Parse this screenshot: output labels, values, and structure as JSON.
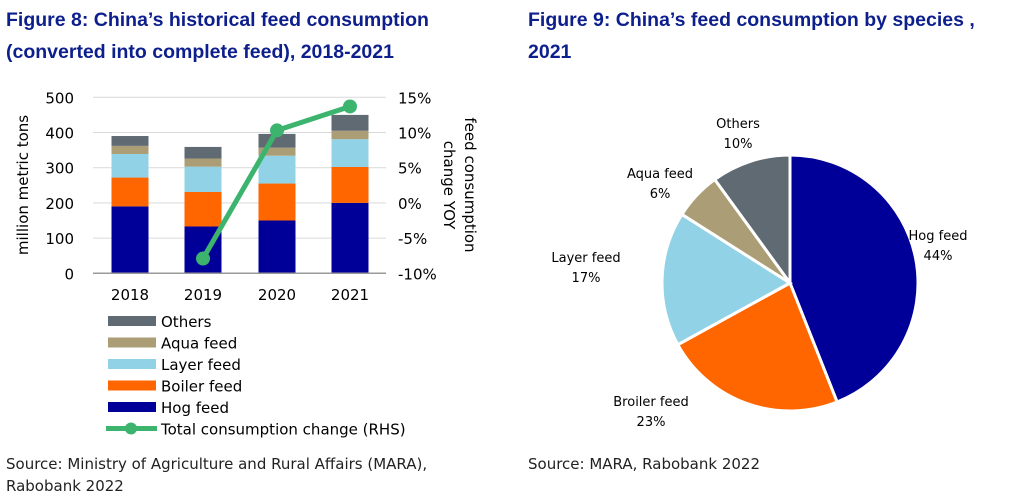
{
  "chart_data": [
    {
      "type": "bar",
      "stacked": true,
      "title": "Figure 8: China’s historical feed consumption (converted into complete feed), 2018-2021",
      "categories": [
        "2018",
        "2019",
        "2020",
        "2021"
      ],
      "ylabel": "million metric tons",
      "ylim": [
        0,
        500
      ],
      "yticks": [
        "0",
        "100",
        "200",
        "300",
        "400",
        "500"
      ],
      "y2label": "feed consumption change YOY",
      "y2lim": [
        -10,
        15
      ],
      "y2ticks": [
        "-10%",
        "-5%",
        "0%",
        "5%",
        "10%",
        "15%"
      ],
      "grid": true,
      "legend_position": "bottom",
      "series": [
        {
          "name": "Hog feed",
          "color": "#000099",
          "values": [
            190,
            133,
            150,
            200
          ]
        },
        {
          "name": "Boiler feed",
          "color": "#ff6600",
          "values": [
            82,
            98,
            105,
            102
          ]
        },
        {
          "name": "Layer feed",
          "color": "#92d2e6",
          "values": [
            67,
            72,
            79,
            79
          ]
        },
        {
          "name": "Aqua feed",
          "color": "#ab9e76",
          "values": [
            23,
            23,
            23,
            24
          ]
        },
        {
          "name": "Others",
          "color": "#5f6a72",
          "values": [
            28,
            33,
            39,
            45
          ]
        }
      ],
      "line": {
        "name": "Total consumption change (RHS)",
        "color": "#3cb46e",
        "axis": "right",
        "x": [
          "2019",
          "2020",
          "2021"
        ],
        "values": [
          -7.9,
          10.3,
          13.7
        ]
      },
      "source": "Source: Ministry of Agriculture and Rural Affairs (MARA), Rabobank 2022"
    },
    {
      "type": "pie",
      "title": "Figure 9: China’s feed consumption by species , 2021",
      "slices": [
        {
          "label": "Hog feed",
          "pct": "44%",
          "value": 44,
          "color": "#000099"
        },
        {
          "label": "Broiler feed",
          "pct": "23%",
          "value": 23,
          "color": "#ff6600"
        },
        {
          "label": "Layer feed",
          "pct": "17%",
          "value": 17,
          "color": "#92d2e6"
        },
        {
          "label": "Aqua feed",
          "pct": "6%",
          "value": 6,
          "color": "#ab9e76"
        },
        {
          "label": "Others",
          "pct": "10%",
          "value": 10,
          "color": "#5f6a72"
        }
      ],
      "source": "Source: MARA, Rabobank 2022"
    }
  ]
}
